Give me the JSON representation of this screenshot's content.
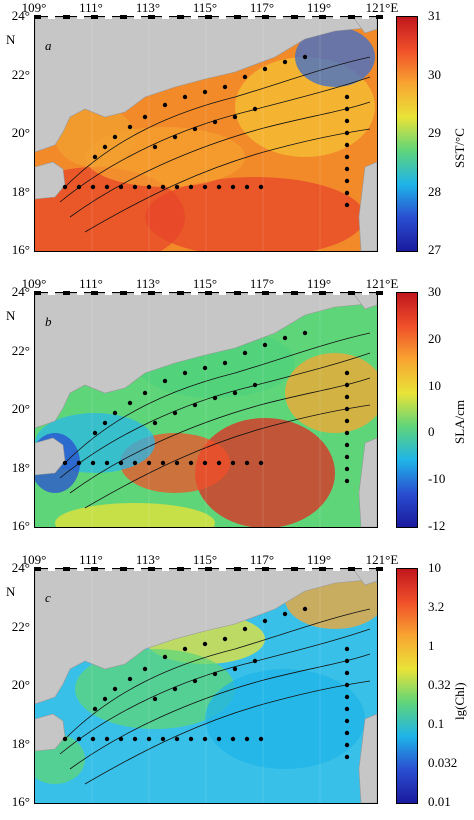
{
  "x_ticks": [
    "109°",
    "111°",
    "113°",
    "115°",
    "117°",
    "119°",
    "121°E"
  ],
  "y_ticks": [
    "24°",
    "22°",
    "20°",
    "18°",
    "16°"
  ],
  "north_label": "N",
  "panels": [
    {
      "letter": "a",
      "colorbar_title": "SST/°C",
      "colorbar_ticks": [
        "31",
        "30",
        "29",
        "28",
        "27"
      ],
      "colorbar_colors": [
        "#c0161d",
        "#f0502a",
        "#f8a531",
        "#e9e338",
        "#5fd57a",
        "#1fb4e8",
        "#2a4ed1",
        "#1a1a9e"
      ],
      "field_base": "#f28a2a"
    },
    {
      "letter": "b",
      "colorbar_title": "SLA/cm",
      "colorbar_ticks": [
        "30",
        "20",
        "10",
        "0",
        "-10",
        "-12"
      ],
      "colorbar_colors": [
        "#c0161d",
        "#f0502a",
        "#f8a531",
        "#e9e338",
        "#5fd57a",
        "#1fb4e8",
        "#2a4ed1",
        "#1a1a9e"
      ],
      "field_base": "#5fd57a"
    },
    {
      "letter": "c",
      "colorbar_title": "lg(Chl)",
      "colorbar_ticks": [
        "10",
        "3.2",
        "1",
        "0.32",
        "0.1",
        "0.032",
        "0.01"
      ],
      "colorbar_colors": [
        "#c0161d",
        "#f0502a",
        "#f8a531",
        "#e9e338",
        "#5fd57a",
        "#1fb4e8",
        "#2a4ed1",
        "#1a1a9e"
      ],
      "field_base": "#39c0e8"
    }
  ]
}
